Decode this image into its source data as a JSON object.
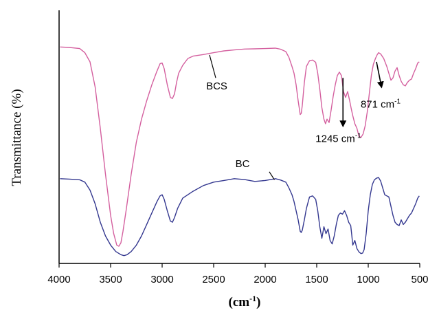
{
  "chart_data": {
    "type": "line",
    "xlabel": "(cm",
    "xlabel_sup": "-1",
    "xlabel_close": ")",
    "ylabel": "Transmittance (%)",
    "xlim": [
      4000,
      500
    ],
    "x_reversed": true,
    "xticks": [
      "4000",
      "3500",
      "3000",
      "2500",
      "2000",
      "1500",
      "1000",
      "500"
    ],
    "ylim": [
      0,
      100
    ],
    "y_ticks_shown": false,
    "grid": false,
    "legend": "none",
    "series": [
      {
        "name": "BCS",
        "color": "#d4609f",
        "points": [
          [
            3990,
            91.5
          ],
          [
            3900,
            91.3
          ],
          [
            3800,
            90.8
          ],
          [
            3750,
            89
          ],
          [
            3700,
            85
          ],
          [
            3650,
            74
          ],
          [
            3600,
            56
          ],
          [
            3550,
            36
          ],
          [
            3500,
            18
          ],
          [
            3470,
            10
          ],
          [
            3440,
            5
          ],
          [
            3420,
            4.5
          ],
          [
            3400,
            6
          ],
          [
            3380,
            11
          ],
          [
            3350,
            20
          ],
          [
            3300,
            36
          ],
          [
            3250,
            50
          ],
          [
            3200,
            60
          ],
          [
            3150,
            68
          ],
          [
            3100,
            75
          ],
          [
            3050,
            81
          ],
          [
            3020,
            84.2
          ],
          [
            3000,
            84.5
          ],
          [
            2980,
            82
          ],
          [
            2950,
            75
          ],
          [
            2920,
            69.5
          ],
          [
            2900,
            69
          ],
          [
            2880,
            71
          ],
          [
            2860,
            76
          ],
          [
            2840,
            80
          ],
          [
            2800,
            83.5
          ],
          [
            2750,
            86.5
          ],
          [
            2700,
            87.5
          ],
          [
            2600,
            88.2
          ],
          [
            2500,
            89
          ],
          [
            2400,
            89.8
          ],
          [
            2300,
            90.2
          ],
          [
            2200,
            90.6
          ],
          [
            2100,
            90.7
          ],
          [
            2000,
            90.8
          ],
          [
            1900,
            91
          ],
          [
            1850,
            90.5
          ],
          [
            1800,
            89.5
          ],
          [
            1770,
            87
          ],
          [
            1740,
            83
          ],
          [
            1720,
            80
          ],
          [
            1700,
            75
          ],
          [
            1680,
            68
          ],
          [
            1660,
            62
          ],
          [
            1650,
            62.5
          ],
          [
            1640,
            66
          ],
          [
            1620,
            76
          ],
          [
            1600,
            83
          ],
          [
            1570,
            85.5
          ],
          [
            1540,
            85.8
          ],
          [
            1510,
            84.8
          ],
          [
            1490,
            80
          ],
          [
            1470,
            73
          ],
          [
            1450,
            65
          ],
          [
            1430,
            60
          ],
          [
            1415,
            58
          ],
          [
            1400,
            60
          ],
          [
            1380,
            58.5
          ],
          [
            1360,
            64
          ],
          [
            1340,
            70
          ],
          [
            1320,
            75
          ],
          [
            1300,
            79
          ],
          [
            1280,
            80.5
          ],
          [
            1260,
            79
          ],
          [
            1240,
            72
          ],
          [
            1220,
            69.5
          ],
          [
            1200,
            72
          ],
          [
            1180,
            68
          ],
          [
            1165,
            64.5
          ],
          [
            1150,
            61.5
          ],
          [
            1130,
            58
          ],
          [
            1110,
            56
          ],
          [
            1090,
            52.5
          ],
          [
            1070,
            52
          ],
          [
            1050,
            53.5
          ],
          [
            1030,
            57
          ],
          [
            1010,
            63
          ],
          [
            990,
            71
          ],
          [
            970,
            79
          ],
          [
            950,
            84
          ],
          [
            930,
            86.5
          ],
          [
            915,
            88
          ],
          [
            900,
            89
          ],
          [
            880,
            88.5
          ],
          [
            850,
            86.5
          ],
          [
            820,
            83
          ],
          [
            800,
            80
          ],
          [
            780,
            77
          ],
          [
            760,
            78
          ],
          [
            740,
            81
          ],
          [
            720,
            82.5
          ],
          [
            700,
            79
          ],
          [
            680,
            76.5
          ],
          [
            660,
            75
          ],
          [
            640,
            74.5
          ],
          [
            620,
            76
          ],
          [
            600,
            77
          ],
          [
            580,
            77.5
          ],
          [
            560,
            80
          ],
          [
            540,
            82
          ],
          [
            520,
            84.5
          ],
          [
            505,
            85
          ]
        ]
      },
      {
        "name": "BC",
        "color": "#33378f",
        "points": [
          [
            3990,
            34
          ],
          [
            3900,
            33.8
          ],
          [
            3800,
            33.5
          ],
          [
            3750,
            32.5
          ],
          [
            3700,
            29
          ],
          [
            3650,
            23
          ],
          [
            3600,
            15
          ],
          [
            3550,
            9
          ],
          [
            3500,
            5
          ],
          [
            3450,
            2.2
          ],
          [
            3400,
            0.8
          ],
          [
            3370,
            0.4
          ],
          [
            3340,
            0.8
          ],
          [
            3300,
            2.2
          ],
          [
            3250,
            5
          ],
          [
            3200,
            9
          ],
          [
            3150,
            14
          ],
          [
            3100,
            19
          ],
          [
            3050,
            24
          ],
          [
            3020,
            26.5
          ],
          [
            3000,
            27
          ],
          [
            2980,
            25
          ],
          [
            2950,
            20
          ],
          [
            2920,
            15.5
          ],
          [
            2900,
            15
          ],
          [
            2880,
            17
          ],
          [
            2850,
            21
          ],
          [
            2800,
            25.5
          ],
          [
            2700,
            28.5
          ],
          [
            2600,
            31
          ],
          [
            2500,
            32.5
          ],
          [
            2400,
            33.2
          ],
          [
            2300,
            34
          ],
          [
            2200,
            33.6
          ],
          [
            2100,
            32.8
          ],
          [
            2000,
            33.2
          ],
          [
            1900,
            34
          ],
          [
            1850,
            33.4
          ],
          [
            1800,
            32.5
          ],
          [
            1770,
            30
          ],
          [
            1740,
            27
          ],
          [
            1720,
            24
          ],
          [
            1700,
            20
          ],
          [
            1680,
            16
          ],
          [
            1660,
            11
          ],
          [
            1650,
            10.5
          ],
          [
            1640,
            11.5
          ],
          [
            1620,
            16
          ],
          [
            1600,
            21
          ],
          [
            1570,
            26
          ],
          [
            1540,
            26.5
          ],
          [
            1510,
            25
          ],
          [
            1490,
            20
          ],
          [
            1470,
            13
          ],
          [
            1450,
            8
          ],
          [
            1430,
            13
          ],
          [
            1410,
            10
          ],
          [
            1390,
            12
          ],
          [
            1370,
            7
          ],
          [
            1350,
            5.5
          ],
          [
            1330,
            9
          ],
          [
            1310,
            14
          ],
          [
            1290,
            18
          ],
          [
            1270,
            19
          ],
          [
            1250,
            18.5
          ],
          [
            1230,
            20
          ],
          [
            1210,
            18
          ],
          [
            1190,
            15
          ],
          [
            1170,
            13.5
          ],
          [
            1160,
            9.5
          ],
          [
            1150,
            5
          ],
          [
            1130,
            7
          ],
          [
            1110,
            3.5
          ],
          [
            1090,
            2
          ],
          [
            1070,
            1.3
          ],
          [
            1055,
            1.5
          ],
          [
            1040,
            3
          ],
          [
            1020,
            10
          ],
          [
            1000,
            20
          ],
          [
            980,
            27
          ],
          [
            960,
            31.5
          ],
          [
            940,
            33.5
          ],
          [
            920,
            34.2
          ],
          [
            900,
            34.5
          ],
          [
            880,
            33
          ],
          [
            860,
            30
          ],
          [
            840,
            27
          ],
          [
            820,
            26.5
          ],
          [
            800,
            26
          ],
          [
            780,
            22
          ],
          [
            760,
            18
          ],
          [
            740,
            15
          ],
          [
            720,
            14
          ],
          [
            700,
            13.5
          ],
          [
            680,
            16
          ],
          [
            660,
            14
          ],
          [
            640,
            15
          ],
          [
            620,
            16.5
          ],
          [
            600,
            18
          ],
          [
            580,
            19
          ],
          [
            560,
            21
          ],
          [
            540,
            23
          ],
          [
            520,
            25.5
          ],
          [
            505,
            26.5
          ]
        ]
      }
    ],
    "annotations": [
      {
        "text": "BCS",
        "series": "BCS",
        "x": 2470,
        "y": 73,
        "leader_from": [
          2480,
          78
        ],
        "leader_to": [
          2540,
          88
        ]
      },
      {
        "text": "BC",
        "series": "BC",
        "x": 2220,
        "y": 39,
        "leader_from": [
          1960,
          37
        ],
        "leader_to": [
          1910,
          33.5
        ]
      },
      {
        "text": "1245 cm",
        "sup": "-1",
        "x": 1290,
        "y": 50,
        "arrow_from": [
          1245,
          78
        ],
        "arrow_to": [
          1245,
          57
        ]
      },
      {
        "text": "871 cm",
        "sup": "-1",
        "x": 880,
        "y": 65,
        "arrow_from": [
          920,
          85
        ],
        "arrow_to": [
          871,
          74
        ]
      }
    ]
  }
}
